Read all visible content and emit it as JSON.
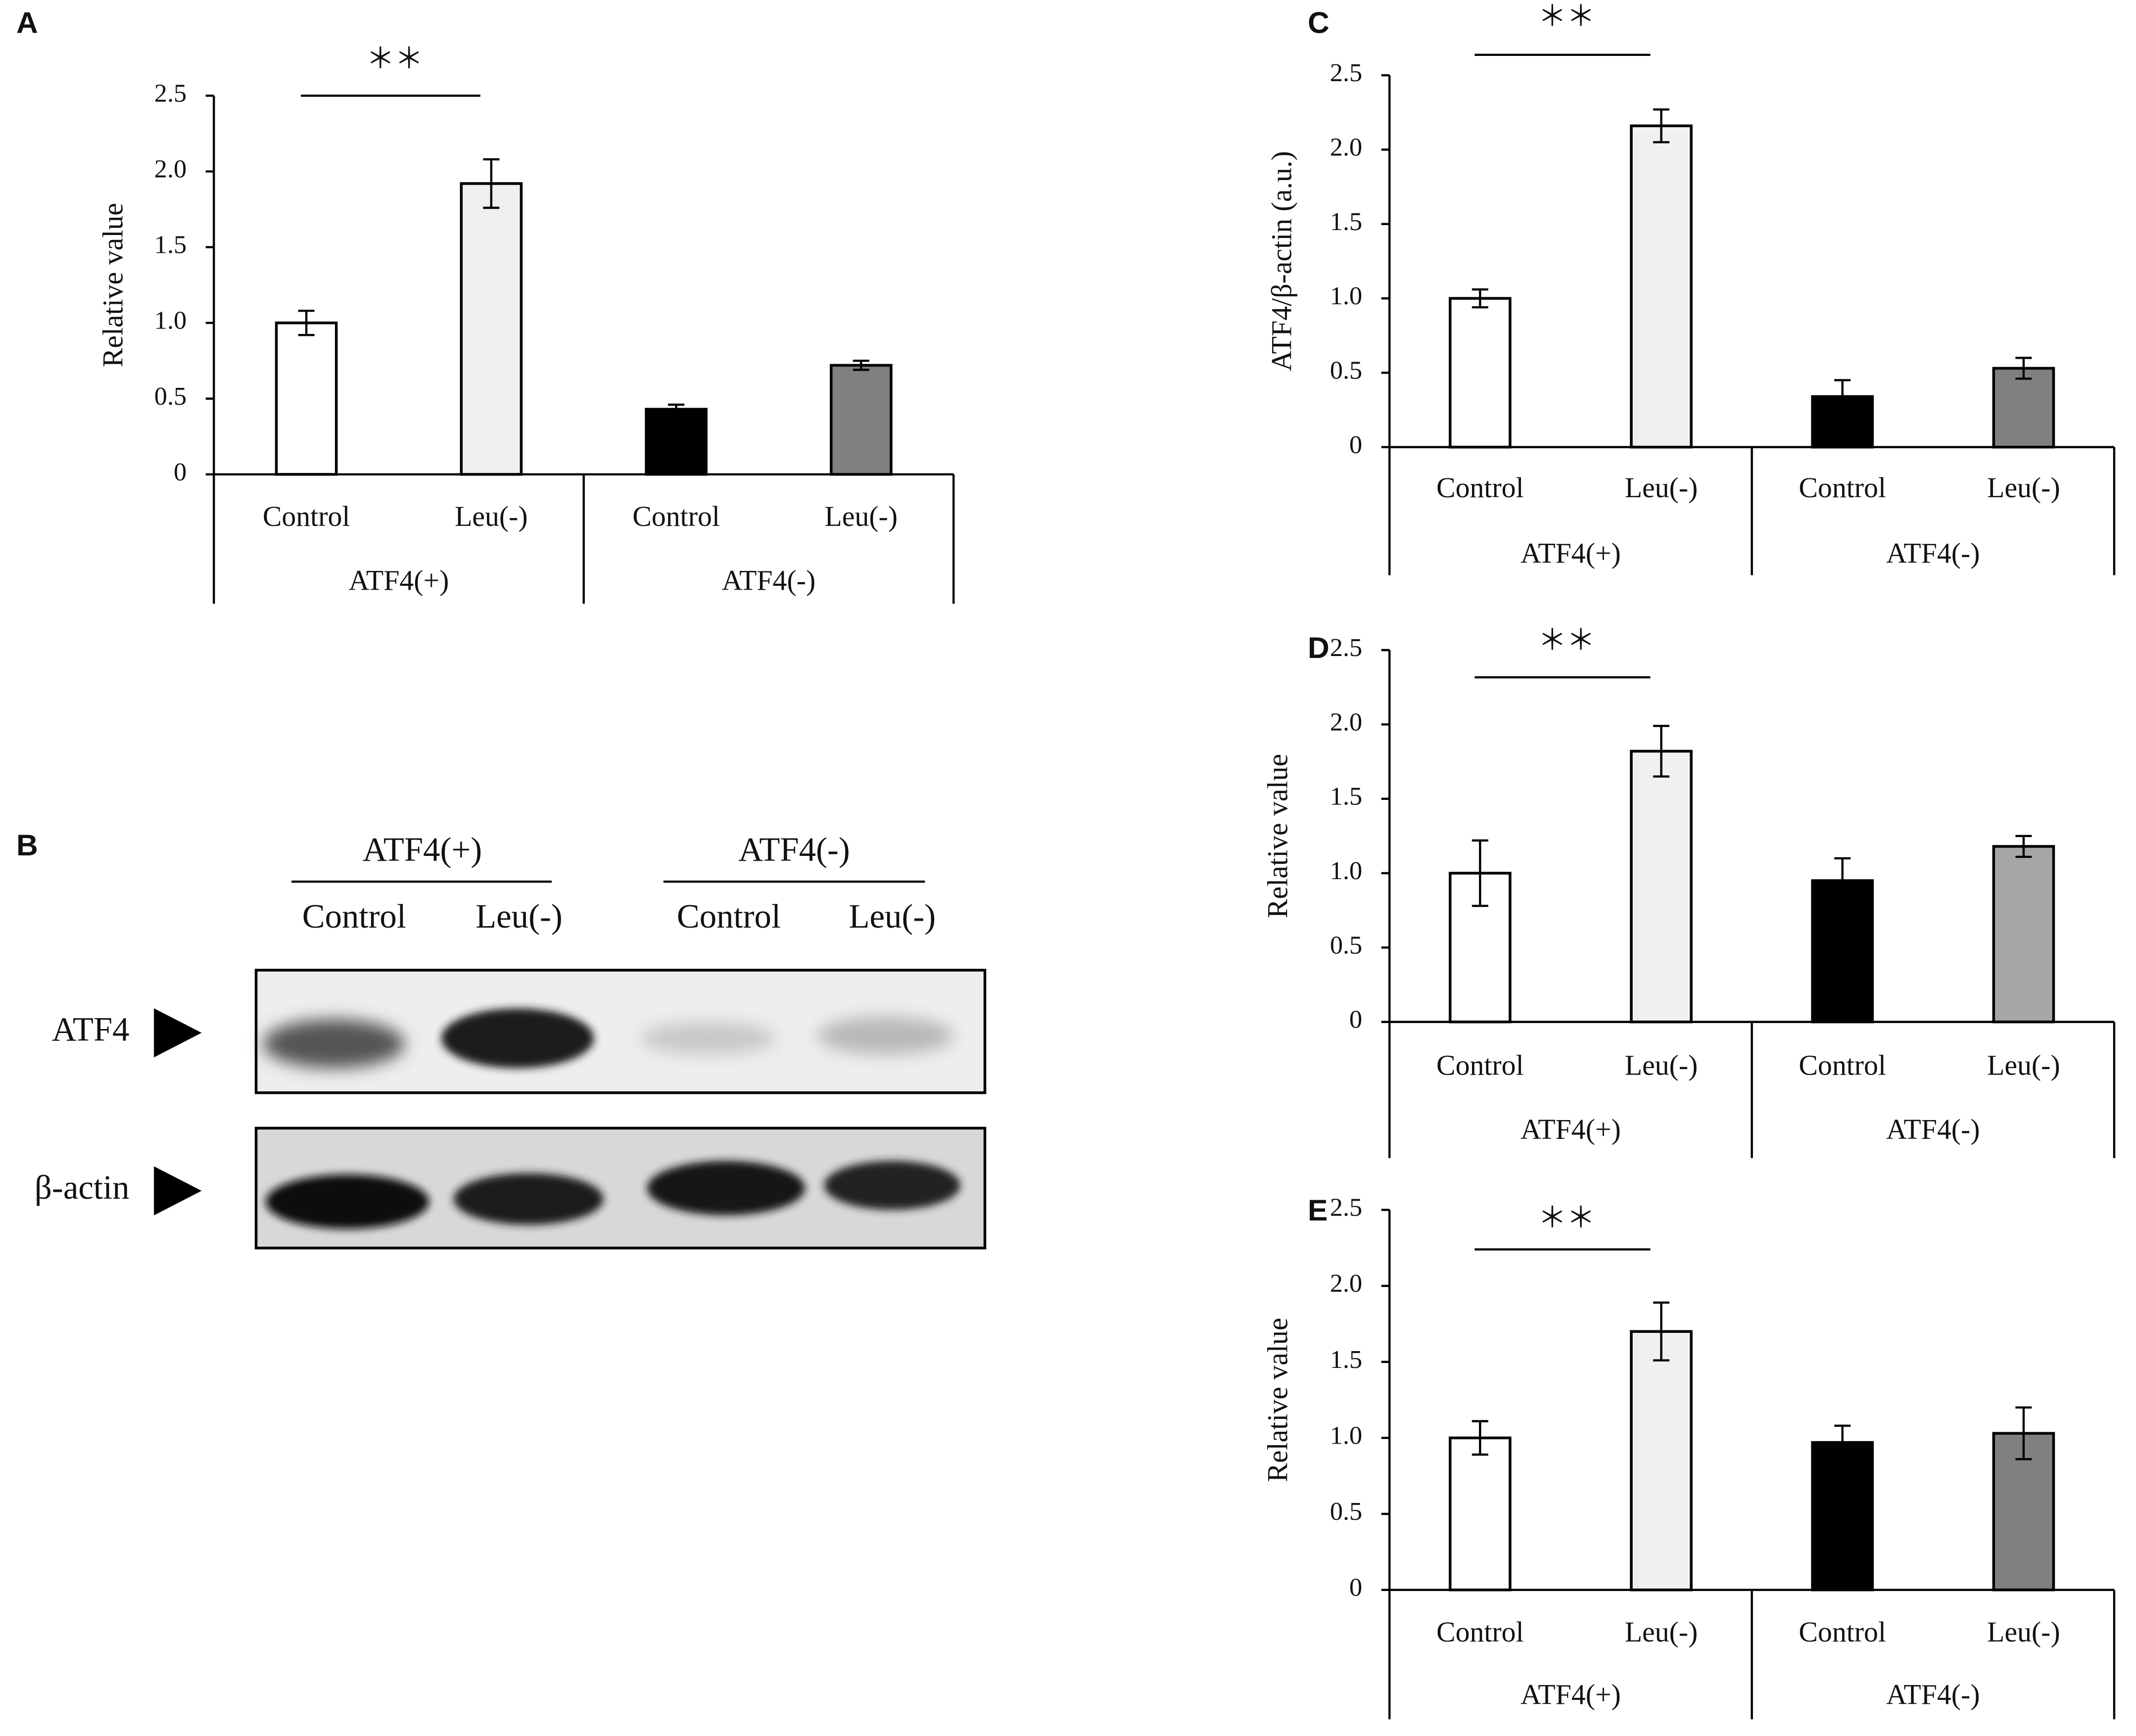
{
  "chart_data": [
    {
      "type": "bar",
      "panel": "A",
      "ylabel": "Relative value",
      "annotation": "＊＊",
      "categories": [
        "Control",
        "Leu(-)",
        "Control",
        "Leu(-)"
      ],
      "groups": [
        "ATF4(+)",
        "ATF4(-)"
      ],
      "values": [
        1.0,
        1.92,
        0.43,
        0.72
      ],
      "errors": [
        0.08,
        0.16,
        0.03,
        0.03
      ],
      "colors": [
        "#ffffff",
        "#f0f0f0",
        "#000000",
        "#808080"
      ],
      "ylim": [
        0,
        2.5
      ],
      "yticks": [
        0,
        0.5,
        {
          "value": 1,
          "label": "1.0"
        },
        1.5,
        {
          "value": 2,
          "label": "2.0"
        },
        2.5
      ]
    },
    {
      "type": "bar",
      "panel": "C",
      "ylabel": "ATF4/β-actin (a.u.)",
      "annotation": "＊＊",
      "categories": [
        "Control",
        "Leu(-)",
        "Control",
        "Leu(-)"
      ],
      "groups": [
        "ATF4(+)",
        "ATF4(-)"
      ],
      "values": [
        1.0,
        2.16,
        0.34,
        0.53
      ],
      "errors": [
        0.06,
        0.11,
        0.11,
        0.07
      ],
      "colors": [
        "#ffffff",
        "#f0f0f0",
        "#000000",
        "#808080"
      ],
      "ylim": [
        0,
        2.5
      ],
      "yticks": [
        0,
        0.5,
        {
          "value": 1,
          "label": "1.0"
        },
        1.5,
        {
          "value": 2,
          "label": "2.0"
        },
        2.5
      ]
    },
    {
      "type": "bar",
      "panel": "D",
      "ylabel": "Relative value",
      "annotation": "＊＊",
      "categories": [
        "Control",
        "Leu(-)",
        "Control",
        "Leu(-)"
      ],
      "groups": [
        "ATF4(+)",
        "ATF4(-)"
      ],
      "values": [
        1.0,
        1.82,
        0.95,
        1.18
      ],
      "errors": [
        0.22,
        0.17,
        0.15,
        0.07
      ],
      "colors": [
        "#ffffff",
        "#f0f0f0",
        "#000000",
        "#a6a6a6"
      ],
      "ylim": [
        0,
        2.5
      ],
      "yticks": [
        0,
        0.5,
        {
          "value": 1,
          "label": "1.0"
        },
        1.5,
        {
          "value": 2,
          "label": "2.0"
        },
        2.5
      ]
    },
    {
      "type": "bar",
      "panel": "E",
      "ylabel": "Relative value",
      "annotation": "＊＊",
      "categories": [
        "Control",
        "Leu(-)",
        "Control",
        "Leu(-)"
      ],
      "groups": [
        "ATF4(+)",
        "ATF4(-)"
      ],
      "values": [
        1.0,
        1.7,
        0.97,
        1.03
      ],
      "errors": [
        0.11,
        0.19,
        0.11,
        0.17
      ],
      "colors": [
        "#ffffff",
        "#f0f0f0",
        "#000000",
        "#808080"
      ],
      "ylim": [
        0,
        2.5
      ],
      "yticks": [
        0,
        0.5,
        {
          "value": 1,
          "label": "1.0"
        },
        1.5,
        {
          "value": 2,
          "label": "2.0"
        },
        2.5
      ]
    }
  ],
  "panel_b": {
    "panel": "B",
    "groups": [
      "ATF4(+)",
      "ATF4(-)"
    ],
    "lanes": [
      "Control",
      "Leu(-)",
      "Control",
      "Leu(-)"
    ],
    "rows": [
      "ATF4",
      "β-actin"
    ]
  }
}
